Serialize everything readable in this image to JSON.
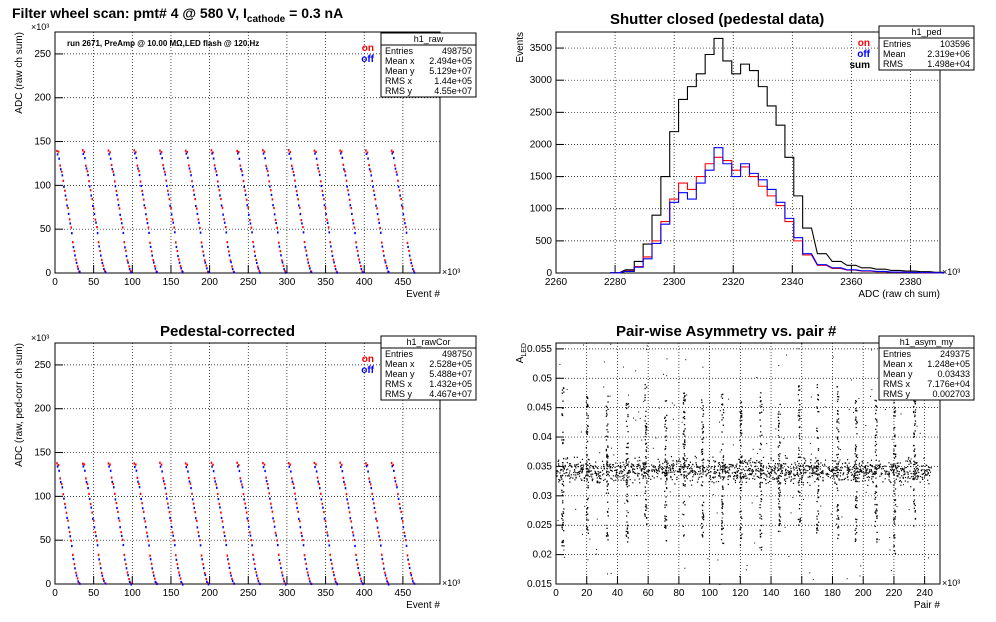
{
  "pads": [
    {
      "title": "Filter wheel scan: pmt#   4 @   580 V, I",
      "title_sub": "cathode",
      "title_tail": " = 0.3 nA",
      "note": "run 2671, PreAmp @ 10.00 MΩ,LED flash @  120.Hz",
      "xlabel": "Event #",
      "ylabel": "ADC (raw ch sum)",
      "x_exponent": "×10³",
      "y_exponent": "×10³",
      "xticks": [
        0,
        50,
        100,
        150,
        200,
        250,
        300,
        350,
        400,
        450
      ],
      "yticks": [
        0,
        50,
        100,
        150,
        200,
        250
      ],
      "legend": [
        {
          "label": "on",
          "color": "#ff0000"
        },
        {
          "label": "off",
          "color": "#0000ff"
        }
      ],
      "stats": {
        "name": "h1_raw",
        "rows": [
          [
            "Entries",
            "498750"
          ],
          [
            "Mean x",
            "2.494e+05"
          ],
          [
            "Mean y",
            "5.129e+07"
          ],
          [
            "RMS x",
            "1.44e+05"
          ],
          [
            "RMS y",
            "4.55e+07"
          ]
        ]
      }
    },
    {
      "title": "Shutter closed (pedestal data)",
      "xlabel": "ADC (raw ch sum)",
      "ylabel": "Events",
      "x_exponent": "×10³",
      "xticks": [
        2260,
        2280,
        2300,
        2320,
        2340,
        2360,
        2380
      ],
      "yticks": [
        0,
        500,
        1000,
        1500,
        2000,
        2500,
        3000,
        3500
      ],
      "legend": [
        {
          "label": "on",
          "color": "#ff0000"
        },
        {
          "label": "off",
          "color": "#0000ff"
        },
        {
          "label": "sum",
          "color": "#000000"
        }
      ],
      "stats": {
        "name": "h1_ped",
        "rows": [
          [
            "Entries",
            "103596"
          ],
          [
            "Mean",
            "2.319e+06"
          ],
          [
            "RMS",
            "1.498e+04"
          ]
        ]
      }
    },
    {
      "title": "Pedestal-corrected",
      "xlabel": "Event #",
      "ylabel": "ADC (raw, ped-corr ch sum)",
      "x_exponent": "×10³",
      "y_exponent": "×10³",
      "xticks": [
        0,
        50,
        100,
        150,
        200,
        250,
        300,
        350,
        400,
        450
      ],
      "yticks": [
        0,
        50,
        100,
        150,
        200,
        250
      ],
      "legend": [
        {
          "label": "on",
          "color": "#ff0000"
        },
        {
          "label": "off",
          "color": "#0000ff"
        }
      ],
      "stats": {
        "name": "h1_rawCor",
        "rows": [
          [
            "Entries",
            "498750"
          ],
          [
            "Mean x",
            "2.528e+05"
          ],
          [
            "Mean y",
            "5.488e+07"
          ],
          [
            "RMS x",
            "1.432e+05"
          ],
          [
            "RMS y",
            "4.467e+07"
          ]
        ]
      }
    },
    {
      "title": "Pair-wise Asymmetry vs. pair #",
      "xlabel": "Pair #",
      "ylabel": "A",
      "ylabel_sub": "LED",
      "x_exponent": "×10³",
      "xticks": [
        0,
        20,
        40,
        60,
        80,
        100,
        120,
        140,
        160,
        180,
        200,
        220,
        240
      ],
      "yticks": [
        0.015,
        0.02,
        0.025,
        0.03,
        0.035,
        0.04,
        0.045,
        0.05,
        0.055
      ],
      "stats": {
        "name": "h1_asym_my",
        "rows": [
          [
            "Entries",
            "249375"
          ],
          [
            "Mean x",
            "1.248e+05"
          ],
          [
            "Mean y",
            "0.03433"
          ],
          [
            "RMS x",
            "7.176e+04"
          ],
          [
            "RMS y",
            "0.002703"
          ]
        ]
      }
    }
  ],
  "chart_data": [
    {
      "type": "scatter",
      "title": "Filter wheel scan: pmt#   4 @   580 V, Icathode = 0.3 nA",
      "xlabel": "Event # (×10³)",
      "ylabel": "ADC (raw ch sum) (×10³)",
      "xlim": [
        0,
        498
      ],
      "ylim": [
        0,
        275
      ],
      "grid": true,
      "legend_position": "top-right",
      "period": 33.3,
      "series": [
        {
          "name": "on",
          "color": "#ff0000",
          "levels": [
            140,
            138,
            123,
            116,
            105,
            94,
            84,
            74,
            61,
            52,
            35,
            25,
            15,
            8,
            2
          ]
        },
        {
          "name": "off",
          "color": "#0000ff",
          "levels": [
            136,
            131,
            119,
            112,
            99,
            89,
            77,
            67,
            57,
            46,
            30,
            20,
            12,
            5,
            1
          ]
        }
      ]
    },
    {
      "type": "line",
      "title": "Shutter closed (pedestal data)",
      "xlabel": "ADC (raw ch sum) (×10³)",
      "ylabel": "Events",
      "xlim": [
        2260,
        2390
      ],
      "ylim": [
        0,
        3750
      ],
      "grid": true,
      "legend_position": "top-right",
      "x": [
        2280,
        2285,
        2288,
        2291,
        2294,
        2297,
        2300,
        2303,
        2306,
        2309,
        2312,
        2315,
        2318,
        2321,
        2324,
        2327,
        2330,
        2333,
        2336,
        2339,
        2342,
        2345,
        2350,
        2355,
        2360,
        2365,
        2370,
        2375,
        2380,
        2385,
        2390
      ],
      "series": [
        {
          "name": "sum",
          "color": "#000000",
          "values": [
            5,
            50,
            180,
            450,
            900,
            1500,
            2200,
            2700,
            2900,
            3100,
            3400,
            3650,
            3300,
            3100,
            3250,
            3150,
            2900,
            2600,
            2300,
            1800,
            1200,
            700,
            300,
            180,
            120,
            80,
            60,
            40,
            30,
            20,
            10
          ]
        },
        {
          "name": "on",
          "color": "#ff0000",
          "values": [
            2,
            30,
            100,
            250,
            500,
            800,
            1150,
            1400,
            1300,
            1500,
            1700,
            1800,
            1750,
            1600,
            1650,
            1500,
            1350,
            1200,
            1050,
            800,
            500,
            280,
            120,
            70,
            45,
            30,
            20,
            12,
            8,
            5,
            2
          ]
        },
        {
          "name": "off",
          "color": "#0000ff",
          "values": [
            3,
            25,
            90,
            220,
            460,
            760,
            1100,
            1250,
            1150,
            1400,
            1600,
            1950,
            1700,
            1500,
            1700,
            1550,
            1450,
            1300,
            1100,
            850,
            550,
            300,
            130,
            80,
            50,
            35,
            25,
            15,
            10,
            6,
            3
          ]
        }
      ]
    },
    {
      "type": "scatter",
      "title": "Pedestal-corrected",
      "xlabel": "Event # (×10³)",
      "ylabel": "ADC (raw, ped-corr ch sum) (×10³)",
      "xlim": [
        0,
        498
      ],
      "ylim": [
        0,
        275
      ],
      "grid": true,
      "legend_position": "top-right",
      "period": 33.3,
      "series": [
        {
          "name": "on",
          "color": "#ff0000",
          "levels": [
            138,
            136,
            121,
            114,
            103,
            92,
            82,
            72,
            59,
            50,
            33,
            23,
            13,
            6,
            1
          ]
        },
        {
          "name": "off",
          "color": "#0000ff",
          "levels": [
            134,
            129,
            117,
            110,
            97,
            87,
            75,
            65,
            55,
            44,
            28,
            18,
            10,
            3,
            0
          ]
        }
      ]
    },
    {
      "type": "scatter",
      "title": "Pair-wise Asymmetry vs. pair #",
      "xlabel": "Pair # (×10³)",
      "ylabel": "A_LED",
      "xlim": [
        0,
        250
      ],
      "ylim": [
        0.015,
        0.056
      ],
      "grid": true,
      "band": {
        "center": 0.0343,
        "half_width": 0.0012
      },
      "spike_x": [
        4,
        20,
        33,
        46,
        58,
        71,
        83,
        95,
        108,
        120,
        133,
        145,
        158,
        170,
        183,
        195,
        208,
        220,
        233
      ]
    }
  ]
}
